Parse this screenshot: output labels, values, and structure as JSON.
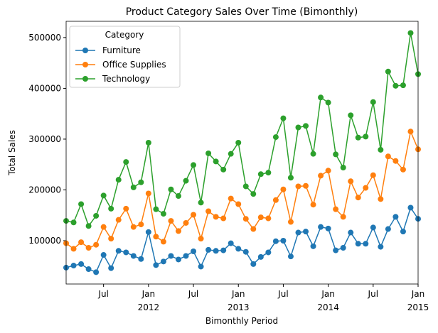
{
  "chart_data": {
    "type": "line",
    "title": "Product Category Sales Over Time (Bimonthly)",
    "xlabel": "Bimonthly Period",
    "ylabel": "Total Sales",
    "legend_title": "Category",
    "legend": "upper left",
    "x": [
      "2011-01",
      "2011-02",
      "2011-03",
      "2011-04",
      "2011-05",
      "2011-06",
      "2011-07",
      "2011-08",
      "2011-09",
      "2011-10",
      "2011-11",
      "2011-12",
      "2012-01",
      "2012-02",
      "2012-03",
      "2012-04",
      "2012-05",
      "2012-06",
      "2012-07",
      "2012-08",
      "2012-09",
      "2012-10",
      "2012-11",
      "2012-12",
      "2013-01",
      "2013-02",
      "2013-03",
      "2013-04",
      "2013-05",
      "2013-06",
      "2013-07",
      "2013-08",
      "2013-09",
      "2013-10",
      "2013-11",
      "2013-12",
      "2014-01",
      "2014-02",
      "2014-03",
      "2014-04",
      "2014-05",
      "2014-06",
      "2014-07",
      "2014-08",
      "2014-09",
      "2014-10",
      "2014-11",
      "2014-12"
    ],
    "xlim": [
      "2011-01",
      "2014-12"
    ],
    "xticks": [
      {
        "value": "2011-07",
        "label": "Jul"
      },
      {
        "value": "2012-01",
        "label": "Jan\n2012"
      },
      {
        "value": "2012-07",
        "label": "Jul"
      },
      {
        "value": "2013-01",
        "label": "Jan\n2013"
      },
      {
        "value": "2013-07",
        "label": "Jul"
      },
      {
        "value": "2014-01",
        "label": "Jan\n2014"
      },
      {
        "value": "2014-07",
        "label": "Jul"
      },
      {
        "value": "2015-01",
        "label": "Jan\n2015"
      }
    ],
    "ylim": [
      14700,
      532000
    ],
    "yticks": [
      100000,
      200000,
      300000,
      400000,
      500000
    ],
    "series": [
      {
        "name": "Furniture",
        "color": "#1f77b4",
        "values": [
          47000,
          51000,
          54000,
          44000,
          38000,
          72000,
          46000,
          80000,
          77000,
          70000,
          64000,
          117000,
          52000,
          59000,
          70000,
          63000,
          70000,
          79000,
          49000,
          82000,
          80000,
          81000,
          95000,
          84000,
          78000,
          54000,
          68000,
          77000,
          99000,
          100000,
          69000,
          116000,
          118000,
          89000,
          127000,
          124000,
          81000,
          86000,
          116000,
          94000,
          94000,
          126000,
          88000,
          123000,
          147000,
          118000,
          165000,
          143000
        ]
      },
      {
        "name": "Office Supplies",
        "color": "#ff7f0e",
        "values": [
          95000,
          84000,
          97000,
          86000,
          92000,
          127000,
          104000,
          141000,
          163000,
          127000,
          132000,
          193000,
          108000,
          98000,
          139000,
          119000,
          135000,
          151000,
          104000,
          158000,
          147000,
          144000,
          183000,
          172000,
          143000,
          123000,
          146000,
          144000,
          180000,
          201000,
          137000,
          207000,
          208000,
          171000,
          228000,
          238000,
          162000,
          147000,
          217000,
          185000,
          204000,
          229000,
          182000,
          266000,
          257000,
          240000,
          315000,
          280000
        ]
      },
      {
        "name": "Technology",
        "color": "#2ca02c",
        "values": [
          139000,
          136000,
          172000,
          129000,
          149000,
          189000,
          163000,
          220000,
          255000,
          205000,
          215000,
          293000,
          162000,
          153000,
          201000,
          188000,
          218000,
          249000,
          175000,
          272000,
          256000,
          240000,
          271000,
          293000,
          207000,
          192000,
          231000,
          234000,
          304000,
          341000,
          224000,
          323000,
          326000,
          271000,
          382000,
          372000,
          270000,
          244000,
          347000,
          303000,
          305000,
          373000,
          279000,
          433000,
          405000,
          406000,
          509000,
          428000
        ]
      }
    ]
  }
}
